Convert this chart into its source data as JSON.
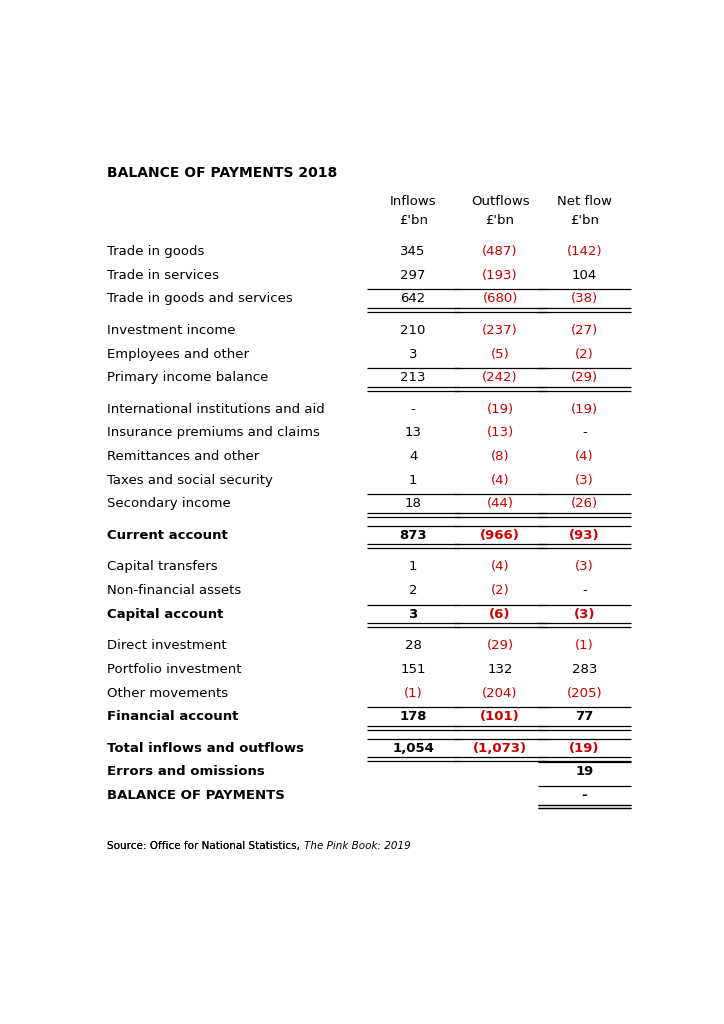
{
  "title": "BALANCE OF PAYMENTS 2018",
  "bg_color": "#ffffff",
  "text_color": "#000000",
  "red_color": "#cc0000",
  "rows": [
    {
      "label": "Trade in goods",
      "inflow": "345",
      "outflow": "(487)",
      "net": "(142)",
      "bold": false,
      "gap_before": true,
      "double_line_after": false,
      "subtotal": false
    },
    {
      "label": "Trade in services",
      "inflow": "297",
      "outflow": "(193)",
      "net": "104",
      "bold": false,
      "gap_before": false,
      "double_line_after": false,
      "subtotal": false
    },
    {
      "label": "Trade in goods and services",
      "inflow": "642",
      "outflow": "(680)",
      "net": "(38)",
      "bold": false,
      "gap_before": false,
      "double_line_after": true,
      "subtotal": true
    },
    {
      "label": "Investment income",
      "inflow": "210",
      "outflow": "(237)",
      "net": "(27)",
      "bold": false,
      "gap_before": true,
      "double_line_after": false,
      "subtotal": false
    },
    {
      "label": "Employees and other",
      "inflow": "3",
      "outflow": "(5)",
      "net": "(2)",
      "bold": false,
      "gap_before": false,
      "double_line_after": false,
      "subtotal": false
    },
    {
      "label": "Primary income balance",
      "inflow": "213",
      "outflow": "(242)",
      "net": "(29)",
      "bold": false,
      "gap_before": false,
      "double_line_after": true,
      "subtotal": true
    },
    {
      "label": "International institutions and aid",
      "inflow": "-",
      "outflow": "(19)",
      "net": "(19)",
      "bold": false,
      "gap_before": true,
      "double_line_after": false,
      "subtotal": false
    },
    {
      "label": "Insurance premiums and claims",
      "inflow": "13",
      "outflow": "(13)",
      "net": "-",
      "bold": false,
      "gap_before": false,
      "double_line_after": false,
      "subtotal": false
    },
    {
      "label": "Remittances and other",
      "inflow": "4",
      "outflow": "(8)",
      "net": "(4)",
      "bold": false,
      "gap_before": false,
      "double_line_after": false,
      "subtotal": false
    },
    {
      "label": "Taxes and social security",
      "inflow": "1",
      "outflow": "(4)",
      "net": "(3)",
      "bold": false,
      "gap_before": false,
      "double_line_after": false,
      "subtotal": false
    },
    {
      "label": "Secondary income",
      "inflow": "18",
      "outflow": "(44)",
      "net": "(26)",
      "bold": false,
      "gap_before": false,
      "double_line_after": true,
      "subtotal": true
    },
    {
      "label": "Current account",
      "inflow": "873",
      "outflow": "(966)",
      "net": "(93)",
      "bold": true,
      "gap_before": true,
      "double_line_after": true,
      "subtotal": true
    },
    {
      "label": "Capital transfers",
      "inflow": "1",
      "outflow": "(4)",
      "net": "(3)",
      "bold": false,
      "gap_before": true,
      "double_line_after": false,
      "subtotal": false
    },
    {
      "label": "Non-financial assets",
      "inflow": "2",
      "outflow": "(2)",
      "net": "-",
      "bold": false,
      "gap_before": false,
      "double_line_after": false,
      "subtotal": false
    },
    {
      "label": "Capital account",
      "inflow": "3",
      "outflow": "(6)",
      "net": "(3)",
      "bold": true,
      "gap_before": false,
      "double_line_after": true,
      "subtotal": true
    },
    {
      "label": "Direct investment",
      "inflow": "28",
      "outflow": "(29)",
      "net": "(1)",
      "bold": false,
      "gap_before": true,
      "double_line_after": false,
      "subtotal": false
    },
    {
      "label": "Portfolio investment",
      "inflow": "151",
      "outflow": "132",
      "net": "283",
      "bold": false,
      "gap_before": false,
      "double_line_after": false,
      "subtotal": false
    },
    {
      "label": "Other movements",
      "inflow": "(1)",
      "outflow": "(204)",
      "net": "(205)",
      "bold": false,
      "gap_before": false,
      "double_line_after": false,
      "subtotal": false
    },
    {
      "label": "Financial account",
      "inflow": "178",
      "outflow": "(101)",
      "net": "77",
      "bold": true,
      "gap_before": false,
      "double_line_after": true,
      "subtotal": true
    },
    {
      "label": "Total inflows and outflows",
      "inflow": "1,054",
      "outflow": "(1,073)",
      "net": "(19)",
      "bold": true,
      "gap_before": true,
      "double_line_after": true,
      "subtotal": true
    },
    {
      "label": "Errors and omissions",
      "inflow": "",
      "outflow": "",
      "net": "19",
      "bold": true,
      "gap_before": false,
      "double_line_after": false,
      "subtotal": false
    },
    {
      "label": "BALANCE OF PAYMENTS",
      "inflow": "",
      "outflow": "",
      "net": "-",
      "bold": true,
      "gap_before": false,
      "double_line_after": true,
      "subtotal": false
    }
  ]
}
